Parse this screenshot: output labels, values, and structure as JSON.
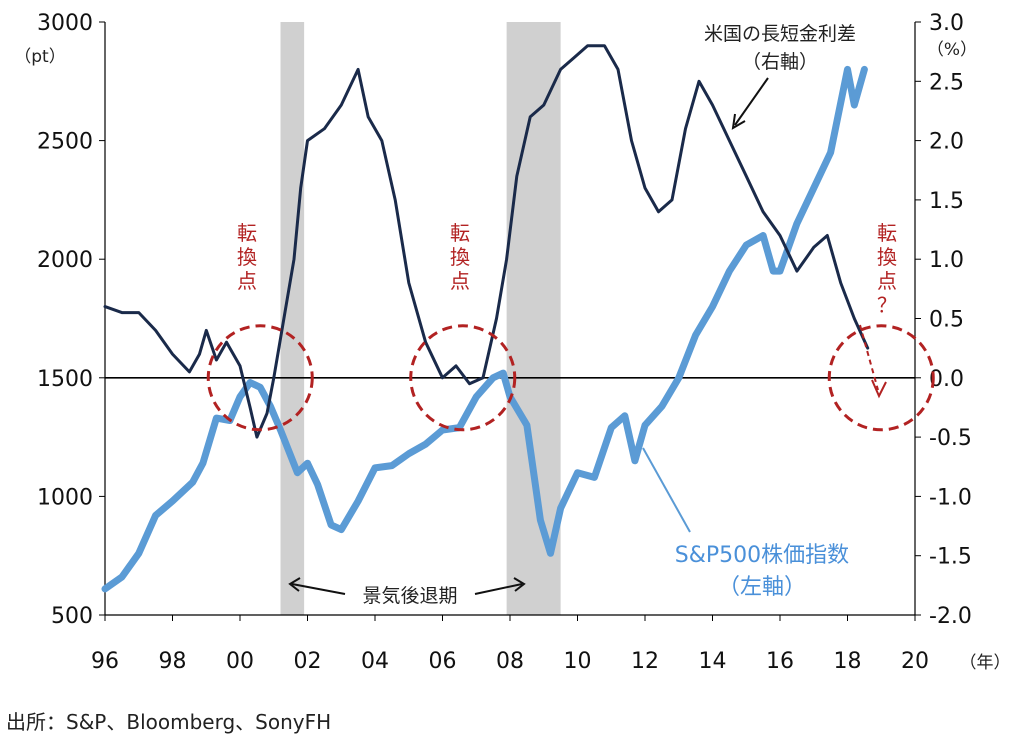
{
  "chart_data": {
    "type": "line",
    "x_ticks": [
      "96",
      "98",
      "00",
      "02",
      "04",
      "06",
      "08",
      "10",
      "12",
      "14",
      "16",
      "18",
      "20"
    ],
    "x_unit": "（年）",
    "x_range": [
      1996,
      2020
    ],
    "left_axis": {
      "unit": "（pt）",
      "ylim": [
        500,
        3000
      ],
      "ticks": [
        "500",
        "1000",
        "1500",
        "2000",
        "2500",
        "3000"
      ]
    },
    "right_axis": {
      "unit": "（%）",
      "ylim": [
        -2.0,
        3.0
      ],
      "ticks": [
        "-2.0",
        "-1.5",
        "-1.0",
        "-0.5",
        "0.0",
        "0.5",
        "1.0",
        "1.5",
        "2.0",
        "2.5",
        "3.0"
      ]
    },
    "recessions": [
      {
        "start": 2001.2,
        "end": 2001.9
      },
      {
        "start": 2007.9,
        "end": 2009.5
      }
    ],
    "recession_label": "景気後退期",
    "turning_point_label": "転換点",
    "future_turning_point_label": "転換点？",
    "series": [
      {
        "name": "S&P500株価指数",
        "axis_note": "（左軸）",
        "color": "#5b9bd5",
        "points": [
          [
            1996.0,
            610
          ],
          [
            1996.5,
            660
          ],
          [
            1997.0,
            760
          ],
          [
            1997.5,
            920
          ],
          [
            1998.0,
            980
          ],
          [
            1998.6,
            1060
          ],
          [
            1998.9,
            1140
          ],
          [
            1999.3,
            1330
          ],
          [
            1999.7,
            1320
          ],
          [
            2000.0,
            1420
          ],
          [
            2000.3,
            1480
          ],
          [
            2000.6,
            1460
          ],
          [
            2000.9,
            1380
          ],
          [
            2001.2,
            1280
          ],
          [
            2001.7,
            1100
          ],
          [
            2002.0,
            1140
          ],
          [
            2002.3,
            1050
          ],
          [
            2002.7,
            880
          ],
          [
            2003.0,
            860
          ],
          [
            2003.5,
            980
          ],
          [
            2004.0,
            1120
          ],
          [
            2004.5,
            1130
          ],
          [
            2005.0,
            1180
          ],
          [
            2005.5,
            1220
          ],
          [
            2006.0,
            1280
          ],
          [
            2006.5,
            1290
          ],
          [
            2007.0,
            1420
          ],
          [
            2007.5,
            1500
          ],
          [
            2007.8,
            1520
          ],
          [
            2008.0,
            1420
          ],
          [
            2008.5,
            1300
          ],
          [
            2008.9,
            900
          ],
          [
            2009.2,
            760
          ],
          [
            2009.5,
            950
          ],
          [
            2010.0,
            1100
          ],
          [
            2010.5,
            1080
          ],
          [
            2011.0,
            1290
          ],
          [
            2011.4,
            1340
          ],
          [
            2011.7,
            1150
          ],
          [
            2012.0,
            1300
          ],
          [
            2012.5,
            1380
          ],
          [
            2013.0,
            1500
          ],
          [
            2013.5,
            1680
          ],
          [
            2014.0,
            1800
          ],
          [
            2014.5,
            1950
          ],
          [
            2015.0,
            2060
          ],
          [
            2015.5,
            2100
          ],
          [
            2015.8,
            1950
          ],
          [
            2016.0,
            1950
          ],
          [
            2016.5,
            2150
          ],
          [
            2017.0,
            2300
          ],
          [
            2017.5,
            2450
          ],
          [
            2018.0,
            2800
          ],
          [
            2018.2,
            2650
          ],
          [
            2018.5,
            2800
          ]
        ]
      },
      {
        "name": "米国の長短金利差",
        "axis_note": "（右軸）",
        "color": "#1a2a4a",
        "points": [
          [
            1996.0,
            0.6
          ],
          [
            1996.5,
            0.55
          ],
          [
            1997.0,
            0.55
          ],
          [
            1997.5,
            0.4
          ],
          [
            1998.0,
            0.2
          ],
          [
            1998.5,
            0.05
          ],
          [
            1998.8,
            0.2
          ],
          [
            1999.0,
            0.4
          ],
          [
            1999.3,
            0.15
          ],
          [
            1999.6,
            0.3
          ],
          [
            2000.0,
            0.1
          ],
          [
            2000.3,
            -0.25
          ],
          [
            2000.5,
            -0.5
          ],
          [
            2000.8,
            -0.3
          ],
          [
            2001.0,
            0.0
          ],
          [
            2001.3,
            0.5
          ],
          [
            2001.6,
            1.0
          ],
          [
            2001.8,
            1.6
          ],
          [
            2002.0,
            2.0
          ],
          [
            2002.5,
            2.1
          ],
          [
            2003.0,
            2.3
          ],
          [
            2003.5,
            2.6
          ],
          [
            2003.8,
            2.2
          ],
          [
            2004.2,
            2.0
          ],
          [
            2004.6,
            1.5
          ],
          [
            2005.0,
            0.8
          ],
          [
            2005.5,
            0.3
          ],
          [
            2006.0,
            0.0
          ],
          [
            2006.4,
            0.1
          ],
          [
            2006.8,
            -0.05
          ],
          [
            2007.2,
            0.0
          ],
          [
            2007.6,
            0.5
          ],
          [
            2007.9,
            1.0
          ],
          [
            2008.2,
            1.7
          ],
          [
            2008.6,
            2.2
          ],
          [
            2009.0,
            2.3
          ],
          [
            2009.5,
            2.6
          ],
          [
            2009.9,
            2.7
          ],
          [
            2010.3,
            2.8
          ],
          [
            2010.8,
            2.8
          ],
          [
            2011.2,
            2.6
          ],
          [
            2011.6,
            2.0
          ],
          [
            2012.0,
            1.6
          ],
          [
            2012.4,
            1.4
          ],
          [
            2012.8,
            1.5
          ],
          [
            2013.2,
            2.1
          ],
          [
            2013.6,
            2.5
          ],
          [
            2014.0,
            2.3
          ],
          [
            2014.5,
            2.0
          ],
          [
            2015.0,
            1.7
          ],
          [
            2015.5,
            1.4
          ],
          [
            2016.0,
            1.2
          ],
          [
            2016.5,
            0.9
          ],
          [
            2017.0,
            1.1
          ],
          [
            2017.4,
            1.2
          ],
          [
            2017.8,
            0.8
          ],
          [
            2018.2,
            0.5
          ],
          [
            2018.6,
            0.25
          ]
        ]
      }
    ]
  },
  "series_labels": {
    "spread": "米国の長短金利差",
    "spread_axis": "（右軸）",
    "sp500": "S&P500株価指数",
    "sp500_axis": "（左軸）"
  },
  "source": "出所：S&P、Bloomberg、SonyFH",
  "colors": {
    "sp500": "#5b9bd5",
    "spread": "#1a2a4a",
    "turning": "#b22222",
    "recession": "#d0d0d0"
  }
}
